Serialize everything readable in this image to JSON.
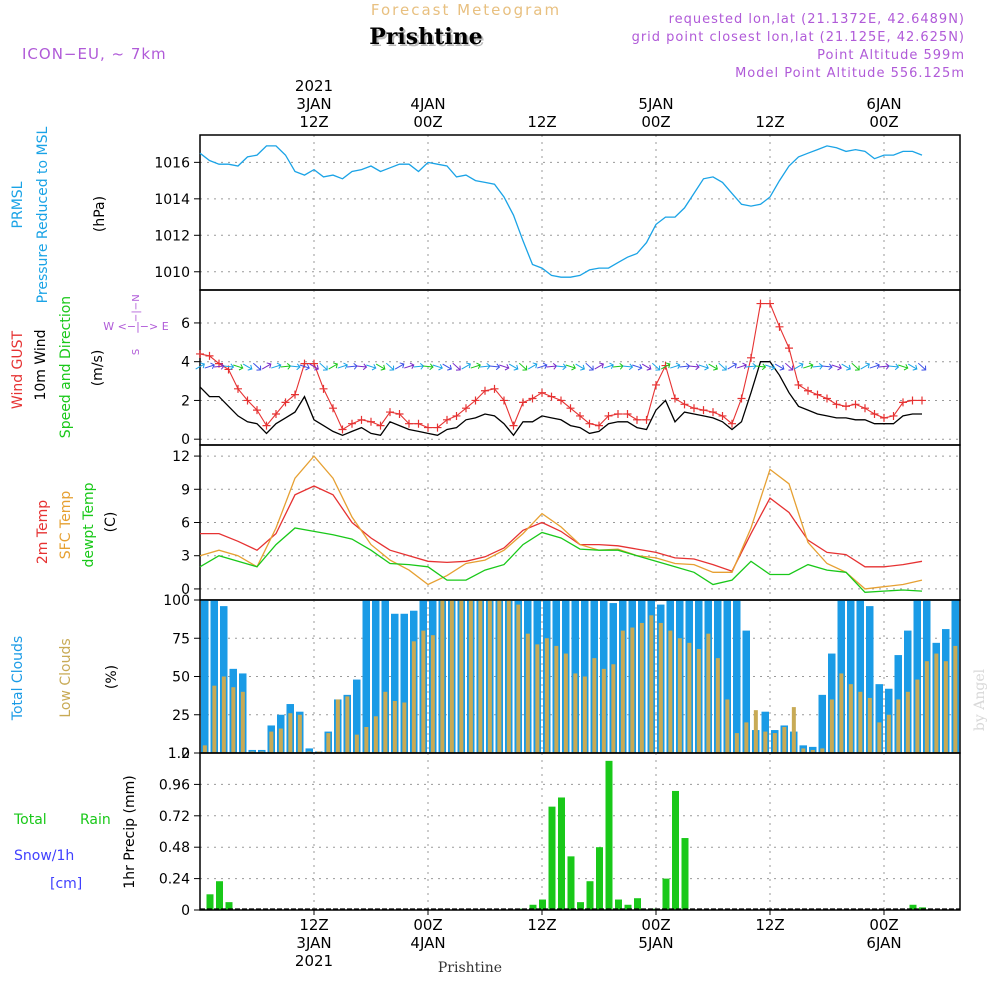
{
  "header": {
    "product_title": "Forecast Meteogram",
    "location": "Prishtine",
    "model": "ICON−EU, ~ 7km",
    "requested_point": "requested lon,lat (21.1372E, 42.6489N)",
    "grid_point": "grid point closest lon,lat (21.125E, 42.625N)",
    "point_altitude": "Point Altitude 599m",
    "model_altitude": "Model Point Altitude 556.125m"
  },
  "time_axis": {
    "hours_start": 0,
    "hours_end": 80,
    "labels": [
      {
        "h": 12,
        "lines": [
          "2021",
          "3JAN",
          "12Z"
        ]
      },
      {
        "h": 24,
        "lines": [
          "4JAN",
          "00Z"
        ]
      },
      {
        "h": 36,
        "lines": [
          "12Z"
        ]
      },
      {
        "h": 48,
        "lines": [
          "5JAN",
          "00Z"
        ]
      },
      {
        "h": 60,
        "lines": [
          "12Z"
        ]
      },
      {
        "h": 72,
        "lines": [
          "6JAN",
          "00Z"
        ]
      }
    ],
    "bottom_labels": [
      {
        "h": 12,
        "lines": [
          "12Z",
          "3JAN",
          "2021"
        ]
      },
      {
        "h": 24,
        "lines": [
          "00Z",
          "4JAN"
        ]
      },
      {
        "h": 36,
        "lines": [
          "12Z"
        ]
      },
      {
        "h": 48,
        "lines": [
          "00Z",
          "5JAN"
        ]
      },
      {
        "h": 60,
        "lines": [
          "12Z"
        ]
      },
      {
        "h": 72,
        "lines": [
          "00Z",
          "6JAN"
        ]
      }
    ],
    "bottom_caption": "Prishtine"
  },
  "watermark": "by Angel",
  "colors": {
    "pressure": "#1aa3e6",
    "gust": "#e63232",
    "wind": "#000000",
    "temp2m": "#e63232",
    "sfc": "#e6a032",
    "dewpt": "#19c819",
    "total_clouds": "#1a9be6",
    "low_clouds": "#c8aa55",
    "rain": "#19c819",
    "snow": "#4040ff",
    "header_purple": "#b05ad8",
    "title_orange": "#e8c080"
  },
  "chart_data": [
    {
      "type": "line",
      "name": "pressure",
      "label_lines": [
        "PRMSL",
        "Pressure Reduced to MSL"
      ],
      "unit": "(hPa)",
      "ylim": [
        1009,
        1017.5
      ],
      "yticks": [
        1010,
        1012,
        1014,
        1016
      ],
      "x": [
        0,
        1,
        2,
        3,
        4,
        5,
        6,
        7,
        8,
        9,
        10,
        11,
        12,
        13,
        14,
        15,
        16,
        17,
        18,
        19,
        20,
        21,
        22,
        23,
        24,
        25,
        26,
        27,
        28,
        29,
        30,
        31,
        32,
        33,
        34,
        35,
        36,
        37,
        38,
        39,
        40,
        41,
        42,
        43,
        44,
        45,
        46,
        47,
        48,
        49,
        50,
        51,
        52,
        53,
        54,
        55,
        56,
        57,
        58,
        59,
        60,
        61,
        62,
        63,
        64,
        65,
        66,
        67,
        68,
        69,
        70,
        71,
        72,
        73,
        74,
        75,
        76
      ],
      "values": [
        1016.5,
        1016.1,
        1015.9,
        1015.9,
        1015.8,
        1016.3,
        1016.4,
        1016.9,
        1016.9,
        1016.4,
        1015.5,
        1015.3,
        1015.6,
        1015.2,
        1015.3,
        1015.1,
        1015.5,
        1015.6,
        1015.8,
        1015.5,
        1015.7,
        1015.9,
        1015.9,
        1015.5,
        1016.0,
        1015.9,
        1015.8,
        1015.2,
        1015.3,
        1015.0,
        1014.9,
        1014.8,
        1014.1,
        1013.1,
        1011.7,
        1010.4,
        1010.2,
        1009.8,
        1009.7,
        1009.7,
        1009.8,
        1010.1,
        1010.2,
        1010.2,
        1010.5,
        1010.8,
        1011.0,
        1011.6,
        1012.6,
        1013.0,
        1013.0,
        1013.5,
        1014.3,
        1015.1,
        1015.2,
        1014.9,
        1014.3,
        1013.7,
        1013.6,
        1013.7,
        1014.1,
        1015.0,
        1015.8,
        1016.3,
        1016.5,
        1016.7,
        1016.9,
        1016.8,
        1016.6,
        1016.7,
        1016.6,
        1016.2,
        1016.4,
        1016.4,
        1016.6,
        1016.6,
        1016.4
      ]
    },
    {
      "type": "line",
      "name": "wind",
      "label_lines": [
        "Wind GUST",
        "10m Wind",
        "Speed and Direction"
      ],
      "unit": "(m/s)",
      "compass": [
        "N",
        "W <−|−> E",
        "S"
      ],
      "ylim": [
        -0.3,
        7.7
      ],
      "yticks": [
        0,
        2,
        4,
        6
      ],
      "x": [
        0,
        1,
        2,
        3,
        4,
        5,
        6,
        7,
        8,
        9,
        10,
        11,
        12,
        13,
        14,
        15,
        16,
        17,
        18,
        19,
        20,
        21,
        22,
        23,
        24,
        25,
        26,
        27,
        28,
        29,
        30,
        31,
        32,
        33,
        34,
        35,
        36,
        37,
        38,
        39,
        40,
        41,
        42,
        43,
        44,
        45,
        46,
        47,
        48,
        49,
        50,
        51,
        52,
        53,
        54,
        55,
        56,
        57,
        58,
        59,
        60,
        61,
        62,
        63,
        64,
        65,
        66,
        67,
        68,
        69,
        70,
        71,
        72,
        73,
        74,
        75,
        76
      ],
      "gust": [
        4.4,
        4.3,
        3.9,
        3.6,
        2.6,
        2.0,
        1.5,
        0.7,
        1.3,
        1.9,
        2.3,
        3.9,
        3.9,
        2.6,
        1.6,
        0.5,
        0.8,
        1.0,
        0.9,
        0.7,
        1.4,
        1.3,
        0.8,
        0.8,
        0.6,
        0.6,
        1.0,
        1.2,
        1.6,
        2.0,
        2.5,
        2.6,
        2.0,
        0.7,
        1.9,
        2.1,
        2.4,
        2.2,
        2.0,
        1.6,
        1.2,
        0.8,
        0.7,
        1.2,
        1.3,
        1.3,
        1.0,
        1.0,
        2.8,
        3.8,
        2.1,
        1.8,
        1.6,
        1.5,
        1.4,
        1.2,
        0.8,
        2.1,
        4.2,
        7.0,
        7.0,
        5.8,
        4.7,
        2.8,
        2.5,
        2.3,
        2.1,
        1.8,
        1.7,
        1.8,
        1.6,
        1.3,
        1.1,
        1.2,
        1.9,
        2.0,
        2.0
      ],
      "wind": [
        2.7,
        2.2,
        2.2,
        1.7,
        1.2,
        0.9,
        0.8,
        0.3,
        0.8,
        1.1,
        1.4,
        2.2,
        1.0,
        0.7,
        0.4,
        0.2,
        0.4,
        0.6,
        0.3,
        0.2,
        0.9,
        0.7,
        0.5,
        0.4,
        0.3,
        0.2,
        0.5,
        0.6,
        1.0,
        1.1,
        1.3,
        1.2,
        0.8,
        0.2,
        0.9,
        0.9,
        1.2,
        1.1,
        1.0,
        0.7,
        0.6,
        0.3,
        0.4,
        0.8,
        0.9,
        0.9,
        0.6,
        0.5,
        1.5,
        2.0,
        0.9,
        1.4,
        1.3,
        1.2,
        1.1,
        0.9,
        0.5,
        0.9,
        2.4,
        4.0,
        4.0,
        3.3,
        2.4,
        1.7,
        1.5,
        1.3,
        1.2,
        1.1,
        1.1,
        1.0,
        1.0,
        0.8,
        0.8,
        0.8,
        1.2,
        1.3,
        1.3
      ]
    },
    {
      "type": "line",
      "name": "temperature",
      "label_lines": [
        "2m Temp",
        "SFC Temp",
        "dewpt Temp"
      ],
      "unit": "(C)",
      "ylim": [
        -1,
        13
      ],
      "yticks": [
        0,
        3,
        6,
        9,
        12
      ],
      "x": [
        0,
        2,
        4,
        6,
        8,
        10,
        12,
        14,
        16,
        18,
        20,
        22,
        24,
        26,
        28,
        30,
        32,
        34,
        36,
        38,
        40,
        42,
        44,
        46,
        48,
        50,
        52,
        54,
        56,
        58,
        60,
        62,
        64,
        66,
        68,
        70,
        72,
        74,
        76
      ],
      "series": [
        {
          "name": "2m Temp",
          "values": [
            5.0,
            5.0,
            4.3,
            3.5,
            5.0,
            8.5,
            9.3,
            8.5,
            6.0,
            4.6,
            3.5,
            3.0,
            2.5,
            2.4,
            2.5,
            2.9,
            3.7,
            5.3,
            6.0,
            5.2,
            4.0,
            4.0,
            3.9,
            3.6,
            3.3,
            2.8,
            2.7,
            2.2,
            1.6,
            5.0,
            8.2,
            6.9,
            4.4,
            3.3,
            3.1,
            2.0,
            2.0,
            2.2,
            2.5
          ]
        },
        {
          "name": "SFC Temp",
          "values": [
            3.0,
            3.5,
            3.0,
            2.0,
            5.5,
            10.0,
            12.0,
            10.0,
            6.5,
            4.0,
            2.6,
            1.7,
            0.4,
            1.2,
            2.3,
            2.6,
            3.5,
            5.0,
            6.8,
            5.6,
            4.0,
            3.5,
            3.6,
            3.0,
            2.8,
            2.3,
            2.2,
            1.5,
            1.5,
            5.5,
            10.8,
            9.5,
            4.2,
            2.3,
            1.5,
            0.0,
            0.2,
            0.4,
            0.8
          ]
        },
        {
          "name": "dewpt Temp",
          "values": [
            2.0,
            3.0,
            2.5,
            2.0,
            4.0,
            5.5,
            5.2,
            4.9,
            4.5,
            3.5,
            2.3,
            2.2,
            2.0,
            0.8,
            0.8,
            1.7,
            2.2,
            4.0,
            5.1,
            4.6,
            3.6,
            3.5,
            3.5,
            3.0,
            2.5,
            2.0,
            1.5,
            0.4,
            0.8,
            2.5,
            1.3,
            1.3,
            2.2,
            1.7,
            1.5,
            -0.3,
            -0.2,
            -0.1,
            -0.2
          ]
        }
      ]
    },
    {
      "type": "bar",
      "name": "clouds",
      "label_lines": [
        "Total Clouds",
        "Low Clouds"
      ],
      "unit": "(%)",
      "ylim": [
        0,
        100
      ],
      "yticks": [
        0,
        25,
        50,
        75,
        100
      ],
      "series": [
        {
          "name": "Total Clouds",
          "values": [
            100,
            100,
            96,
            55,
            52,
            2,
            2,
            18,
            25,
            32,
            27,
            3,
            1,
            14,
            35,
            38,
            48,
            100,
            100,
            100,
            91,
            91,
            93,
            100,
            100,
            100,
            100,
            100,
            100,
            100,
            100,
            100,
            100,
            100,
            100,
            100,
            100,
            100,
            100,
            100,
            100,
            100,
            100,
            98,
            100,
            100,
            100,
            100,
            97,
            100,
            100,
            100,
            100,
            100,
            100,
            100,
            100,
            80,
            15,
            27,
            15,
            18,
            14,
            5,
            4,
            38,
            65,
            100,
            100,
            100,
            96,
            45,
            42,
            64,
            80,
            100,
            100,
            72,
            81,
            100
          ]
        },
        {
          "name": "Low Clouds",
          "values": [
            5,
            44,
            50,
            43,
            40,
            1,
            1,
            14,
            16,
            26,
            25,
            1,
            1,
            13,
            35,
            37,
            12,
            17,
            24,
            40,
            34,
            33,
            73,
            80,
            77,
            100,
            100,
            100,
            100,
            100,
            100,
            100,
            100,
            97,
            78,
            71,
            75,
            70,
            65,
            52,
            50,
            62,
            55,
            58,
            80,
            82,
            85,
            90,
            85,
            80,
            75,
            72,
            68,
            78,
            62,
            35,
            13,
            20,
            28,
            14,
            13,
            17,
            30,
            3,
            2,
            3,
            35,
            52,
            45,
            40,
            36,
            20,
            25,
            35,
            40,
            48,
            60,
            65,
            60,
            70
          ]
        }
      ]
    },
    {
      "type": "bar",
      "name": "precip",
      "label_lines": [
        "Total",
        "Rain",
        "Snow/1h",
        "[cm]"
      ],
      "unit": "1hr Precip (mm)",
      "ylim": [
        0,
        1.2
      ],
      "yticks": [
        0,
        0.24,
        0.48,
        0.72,
        0.96,
        1.2
      ],
      "ytick_labels": [
        "0",
        "0.24",
        "0.48",
        "0.72",
        "0.96",
        "1.2"
      ],
      "x": [
        1,
        2,
        3,
        34,
        35,
        36,
        37,
        38,
        39,
        40,
        41,
        42,
        43,
        44,
        45,
        46,
        48,
        49,
        50,
        51,
        75,
        76
      ],
      "values": [
        0.12,
        0.22,
        0.06,
        0.01,
        0.04,
        0.08,
        0.79,
        0.86,
        0.41,
        0.06,
        0.22,
        0.48,
        1.14,
        0.08,
        0.04,
        0.09,
        0.01,
        0.24,
        0.91,
        0.55,
        0.04,
        0.02
      ]
    }
  ]
}
